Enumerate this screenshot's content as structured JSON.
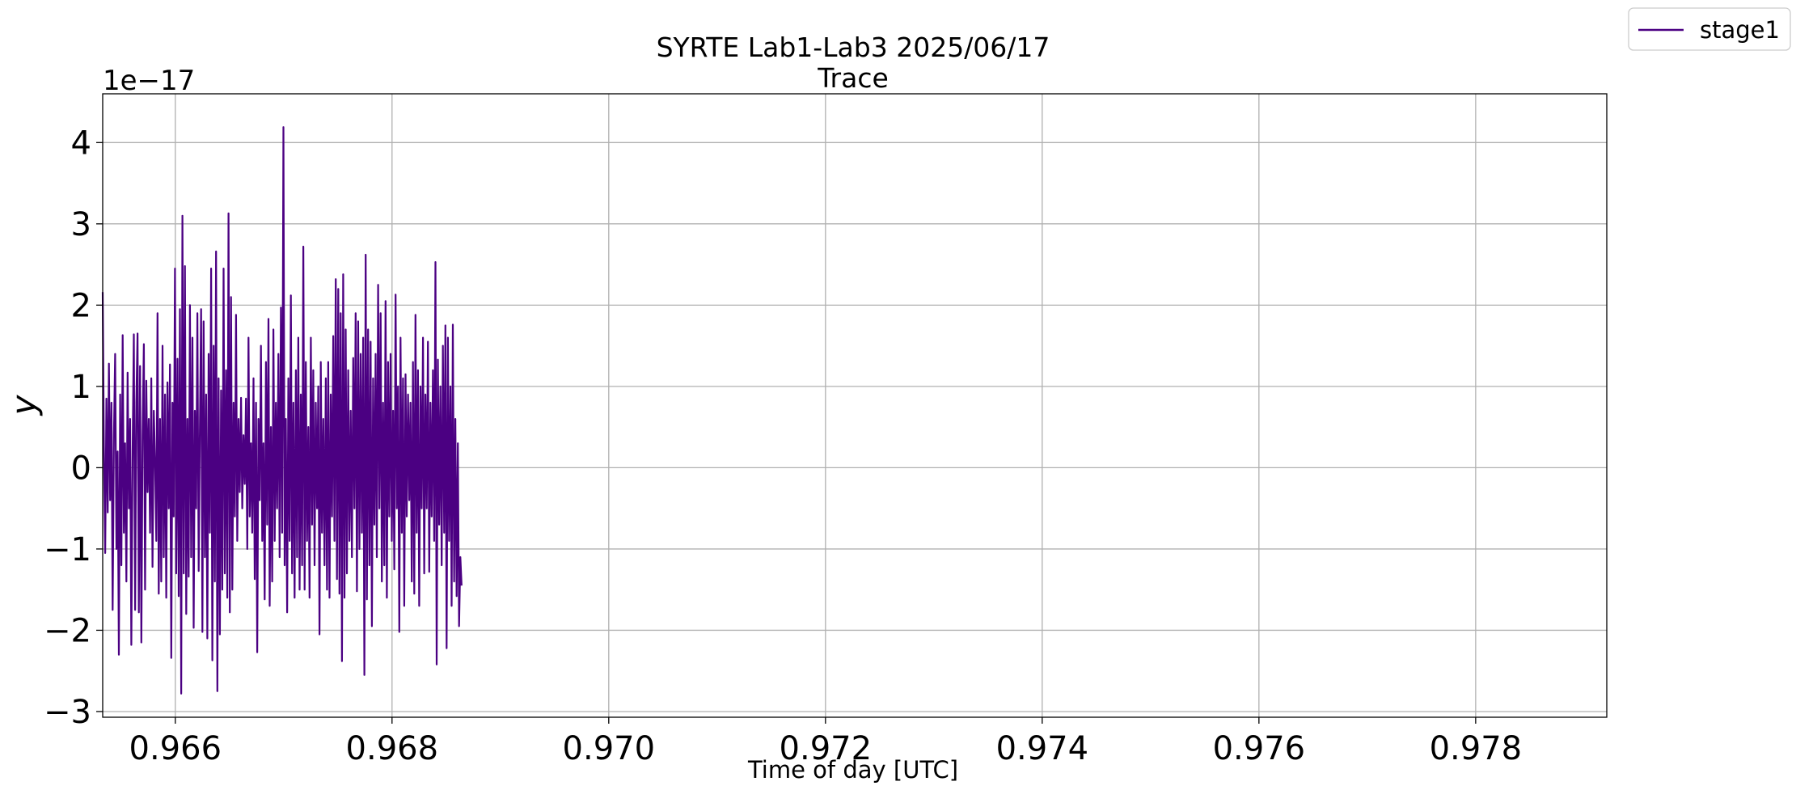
{
  "chart_data": {
    "type": "line",
    "title": "SYRTE Lab1-Lab3 2025/06/17",
    "subtitle": "Trace",
    "xlabel": "Time of day [UTC]",
    "ylabel": "y",
    "y_offset_text": "1e−17",
    "y_scale": 1e-17,
    "xlim": [
      0.96533,
      0.97921
    ],
    "ylim": [
      -3.07,
      4.6
    ],
    "x_ticks": [
      0.966,
      0.968,
      0.97,
      0.972,
      0.974,
      0.976,
      0.978
    ],
    "x_tick_labels": [
      "0.966",
      "0.968",
      "0.970",
      "0.972",
      "0.974",
      "0.976",
      "0.978"
    ],
    "y_ticks": [
      -3,
      -2,
      -1,
      0,
      1,
      2,
      3,
      4
    ],
    "y_tick_labels": [
      "−3",
      "−2",
      "−1",
      "0",
      "1",
      "2",
      "3",
      "4"
    ],
    "grid": true,
    "legend_position": "outside-top-right",
    "series": [
      {
        "name": "stage1",
        "color": "#4b0082",
        "x_start": 0.96533,
        "x_step": 1.15e-05,
        "values_units": "1e-17",
        "values": [
          2.16,
          0.25,
          -1.05,
          0.85,
          -0.55,
          1.28,
          -0.4,
          0.8,
          -1.75,
          0.4,
          1.4,
          -1.0,
          0.2,
          -2.3,
          0.9,
          -1.2,
          1.63,
          -0.8,
          0.3,
          -1.4,
          1.17,
          -0.5,
          0.6,
          -2.18,
          0.2,
          1.64,
          -1.75,
          0.8,
          1.65,
          -1.78,
          1.25,
          -2.15,
          0.4,
          1.52,
          -1.5,
          1.07,
          -0.3,
          0.6,
          -0.8,
          1.1,
          -1.22,
          0.7,
          0.1,
          -0.9,
          1.9,
          -1.55,
          0.6,
          -1.4,
          1.5,
          -1.1,
          0.9,
          -1.6,
          1.05,
          -0.5,
          1.27,
          -2.34,
          0.8,
          -0.6,
          2.45,
          -1.3,
          1.34,
          -1.58,
          1.95,
          -2.78,
          3.1,
          -1.3,
          2.48,
          -1.8,
          0.6,
          -1.34,
          2.0,
          -1.1,
          1.6,
          -1.97,
          0.7,
          -0.5,
          1.9,
          -1.27,
          0.5,
          1.95,
          -2.02,
          1.8,
          -1.1,
          0.9,
          -2.1,
          1.4,
          -0.8,
          2.45,
          -2.37,
          1.5,
          -1.4,
          2.66,
          -2.75,
          1.1,
          -2.05,
          0.95,
          -1.5,
          2.45,
          -1.3,
          1.2,
          -1.6,
          3.13,
          -1.78,
          2.1,
          -1.5,
          0.8,
          -0.6,
          1.88,
          -0.9,
          0.6,
          -0.3,
          0.86,
          -0.5,
          0.4,
          -0.2,
          0.85,
          -1.0,
          1.6,
          -0.6,
          0.3,
          -0.8,
          1.1,
          -1.37,
          0.8,
          -2.27,
          0.6,
          -0.4,
          1.5,
          -0.9,
          0.3,
          -1.62,
          1.3,
          -0.7,
          1.83,
          -1.7,
          0.5,
          -1.4,
          1.7,
          -0.9,
          0.8,
          -0.5,
          1.4,
          -1.1,
          1.97,
          -0.8,
          4.19,
          -1.2,
          0.6,
          -1.78,
          1.1,
          -0.9,
          2.12,
          -1.3,
          0.8,
          -1.6,
          1.2,
          -1.1,
          1.6,
          -1.5,
          0.9,
          -1.2,
          2.72,
          -1.5,
          1.3,
          -0.9,
          0.5,
          -1.6,
          1.6,
          -0.7,
          1.2,
          -1.2,
          0.8,
          -0.5,
          1.0,
          -2.05,
          1.3,
          -0.8,
          0.6,
          -1.2,
          1.1,
          -1.5,
          1.3,
          -1.6,
          0.9,
          -0.6,
          1.62,
          -0.9,
          2.32,
          -1.37,
          2.2,
          -1.55,
          1.9,
          -2.38,
          2.38,
          -1.6,
          1.7,
          -1.3,
          1.2,
          -0.9,
          0.7,
          -1.1,
          1.35,
          -0.5,
          1.9,
          -1.52,
          1.8,
          -1.0,
          1.4,
          -0.8,
          1.6,
          -2.55,
          2.62,
          -1.62,
          1.7,
          -1.2,
          1.55,
          -1.95,
          1.1,
          -0.7,
          1.4,
          -1.1,
          2.25,
          -0.5,
          1.9,
          -1.4,
          0.8,
          -1.2,
          2.05,
          -1.6,
          1.3,
          -0.6,
          1.4,
          -0.9,
          0.7,
          -1.25,
          2.13,
          -0.5,
          1.0,
          -2.02,
          1.6,
          -0.8,
          1.1,
          -1.7,
          1.15,
          -0.6,
          0.9,
          -0.4,
          0.8,
          -1.4,
          1.3,
          -1.55,
          1.88,
          -0.8,
          1.2,
          -1.7,
          1.0,
          -0.5,
          1.6,
          -1.3,
          0.9,
          -0.5,
          1.55,
          -1.28,
          0.8,
          -0.6,
          1.2,
          -0.9,
          2.53,
          -2.42,
          1.33,
          -0.7,
          1.0,
          -1.2,
          1.5,
          -0.8,
          1.75,
          -2.22,
          1.6,
          -0.9,
          1.0,
          -1.7,
          1.76,
          -1.4,
          0.6,
          -1.58,
          0.3,
          -1.95,
          -1.1,
          -1.45
        ]
      }
    ]
  }
}
